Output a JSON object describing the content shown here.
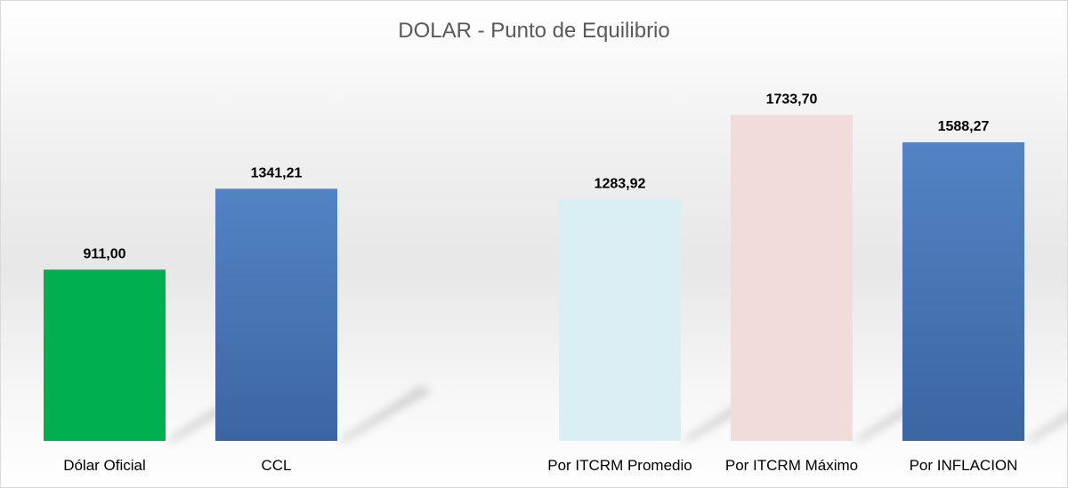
{
  "chart_data": {
    "type": "bar",
    "title": "DOLAR - Punto de Equilibrio",
    "xlabel": "",
    "ylabel": "",
    "ylim": [
      0,
      1900
    ],
    "grid": false,
    "legend": "none",
    "categories": [
      "Dólar Oficial",
      "CCL",
      "",
      "Por ITCRM Promedio",
      "Por ITCRM Máximo",
      "Por INFLACION"
    ],
    "values": [
      911.0,
      1341.21,
      null,
      1283.92,
      1733.7,
      1588.27
    ],
    "value_labels": [
      "911,00",
      "1341,21",
      "",
      "1283,92",
      "1733,70",
      "1588,27"
    ],
    "bar_colors": [
      "#00b050",
      "#4a76b5",
      "",
      "#daeef3",
      "#f2dcdb",
      "#4a76b5"
    ]
  }
}
